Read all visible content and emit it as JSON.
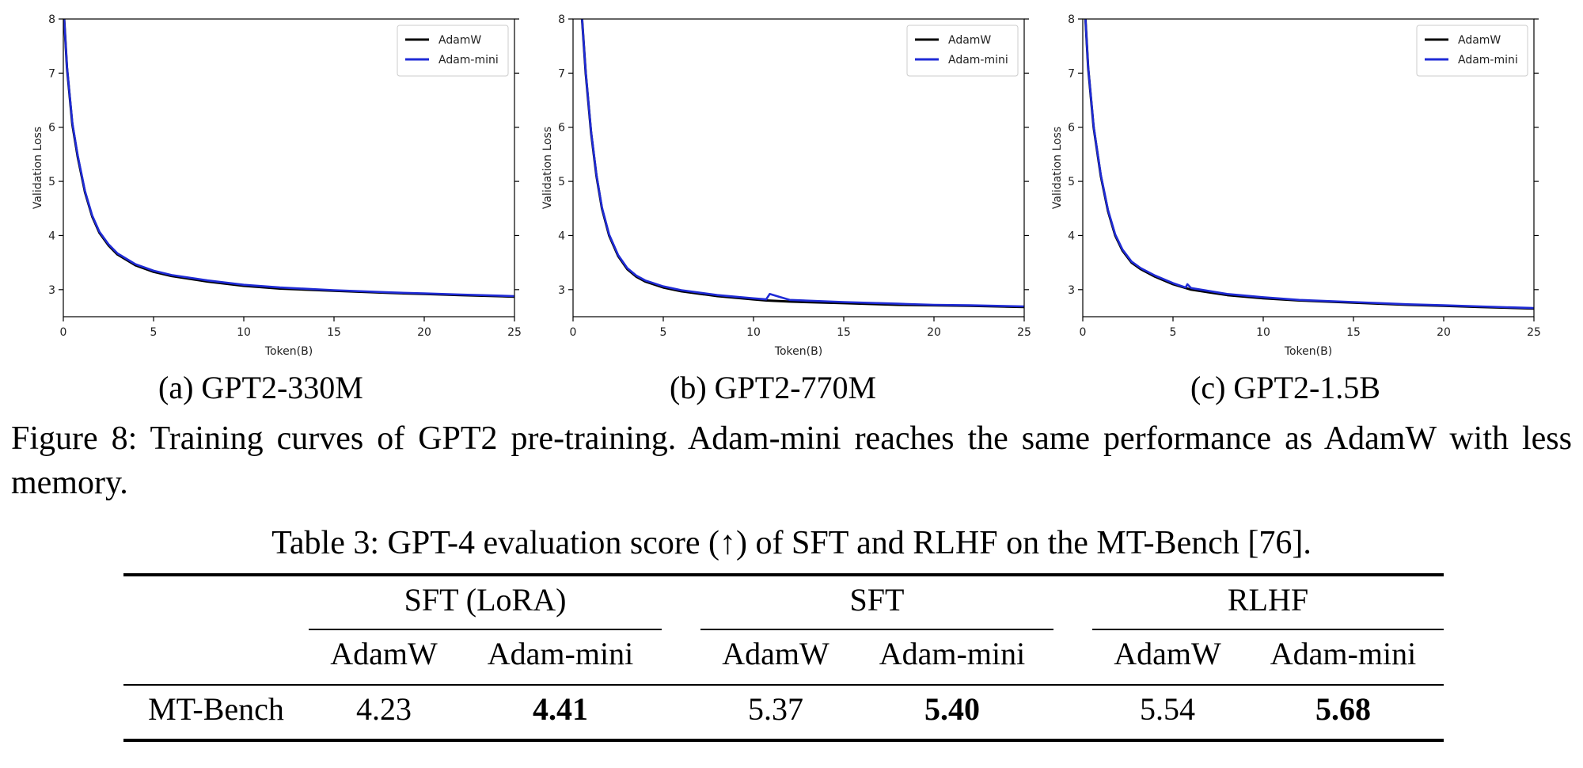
{
  "charts": {
    "chart_data": [
      {
        "type": "line",
        "id": "a",
        "xlabel": "Token(B)",
        "ylabel": "Validation Loss",
        "xlim": [
          0,
          25
        ],
        "ylim": [
          2.5,
          8
        ],
        "xticks": [
          "0",
          "5",
          "10",
          "15",
          "20",
          "25"
        ],
        "yticks": [
          "3",
          "4",
          "5",
          "6",
          "7",
          "8"
        ],
        "legend": [
          "AdamW",
          "Adam-mini"
        ],
        "legend_position": "top-right",
        "series": [
          {
            "name": "AdamW",
            "color": "#000000",
            "x": [
              0.05,
              0.2,
              0.5,
              0.8,
              1.2,
              1.6,
              2,
              2.5,
              3,
              4,
              5,
              6,
              8,
              10,
              12,
              15,
              18,
              20,
              22,
              25
            ],
            "y": [
              8,
              7.1,
              6.05,
              5.45,
              4.8,
              4.35,
              4.05,
              3.82,
              3.65,
              3.45,
              3.33,
              3.25,
              3.15,
              3.07,
              3.02,
              2.98,
              2.94,
              2.92,
              2.9,
              2.87
            ]
          },
          {
            "name": "Adam-mini",
            "color": "#1f2bd6",
            "x": [
              0.05,
              0.2,
              0.5,
              0.8,
              1.2,
              1.6,
              2,
              2.5,
              3,
              4,
              5,
              6,
              8,
              10,
              12,
              15,
              18,
              20,
              22,
              25
            ],
            "y": [
              8,
              7.12,
              6.08,
              5.48,
              4.82,
              4.37,
              4.07,
              3.84,
              3.67,
              3.47,
              3.35,
              3.27,
              3.17,
              3.09,
              3.04,
              2.99,
              2.95,
              2.93,
              2.91,
              2.88
            ]
          }
        ]
      },
      {
        "type": "line",
        "id": "b",
        "xlabel": "Token(B)",
        "ylabel": "Validation Loss",
        "xlim": [
          0,
          25
        ],
        "ylim": [
          2.5,
          8
        ],
        "xticks": [
          "0",
          "5",
          "10",
          "15",
          "20",
          "25"
        ],
        "yticks": [
          "3",
          "4",
          "5",
          "6",
          "7",
          "8"
        ],
        "legend": [
          "AdamW",
          "Adam-mini"
        ],
        "legend_position": "top-right",
        "series": [
          {
            "name": "AdamW",
            "color": "#000000",
            "x": [
              0.5,
              0.7,
              1,
              1.3,
              1.6,
              2,
              2.5,
              3,
              3.5,
              4,
              5,
              6,
              8,
              10,
              10.7,
              12,
              15,
              18,
              20,
              22,
              25
            ],
            "y": [
              8,
              7.0,
              5.9,
              5.1,
              4.5,
              4.0,
              3.62,
              3.38,
              3.24,
              3.15,
              3.04,
              2.97,
              2.88,
              2.82,
              2.8,
              2.78,
              2.75,
              2.72,
              2.71,
              2.7,
              2.68
            ]
          },
          {
            "name": "Adam-mini",
            "color": "#1f2bd6",
            "x": [
              0.5,
              0.7,
              1,
              1.3,
              1.6,
              2,
              2.5,
              3,
              3.5,
              4,
              5,
              6,
              8,
              10,
              10.7,
              10.9,
              11.5,
              12,
              15,
              18,
              20,
              22,
              25
            ],
            "y": [
              8,
              7.02,
              5.92,
              5.12,
              4.52,
              4.02,
              3.64,
              3.4,
              3.26,
              3.17,
              3.06,
              2.99,
              2.9,
              2.84,
              2.82,
              2.92,
              2.86,
              2.81,
              2.77,
              2.74,
              2.72,
              2.71,
              2.69
            ]
          }
        ]
      },
      {
        "type": "line",
        "id": "c",
        "xlabel": "Token(B)",
        "ylabel": "Validation Loss",
        "xlim": [
          0,
          25
        ],
        "ylim": [
          2.5,
          8
        ],
        "xticks": [
          "0",
          "5",
          "10",
          "15",
          "20",
          "25"
        ],
        "yticks": [
          "3",
          "4",
          "5",
          "6",
          "7",
          "8"
        ],
        "legend": [
          "AdamW",
          "Adam-mini"
        ],
        "legend_position": "top-right",
        "series": [
          {
            "name": "AdamW",
            "color": "#000000",
            "x": [
              0.15,
              0.3,
              0.6,
              1,
              1.4,
              1.8,
              2.2,
              2.7,
              3.2,
              4,
              5,
              6,
              8,
              10,
              12,
              15,
              18,
              20,
              22,
              25
            ],
            "y": [
              8,
              7.1,
              6.0,
              5.1,
              4.45,
              4.0,
              3.72,
              3.5,
              3.38,
              3.24,
              3.1,
              3.0,
              2.9,
              2.84,
              2.8,
              2.76,
              2.72,
              2.7,
              2.68,
              2.65
            ]
          },
          {
            "name": "Adam-mini",
            "color": "#1f2bd6",
            "x": [
              0.15,
              0.3,
              0.6,
              1,
              1.4,
              1.8,
              2.2,
              2.7,
              3.2,
              4,
              5,
              5.7,
              5.8,
              6,
              8,
              10,
              12,
              15,
              18,
              20,
              22,
              25
            ],
            "y": [
              8,
              7.12,
              6.02,
              5.12,
              4.47,
              4.02,
              3.74,
              3.52,
              3.4,
              3.26,
              3.12,
              3.04,
              3.1,
              3.03,
              2.92,
              2.86,
              2.81,
              2.77,
              2.73,
              2.71,
              2.69,
              2.66
            ]
          }
        ]
      }
    ]
  },
  "subcaptions": {
    "a": "(a) GPT2-330M",
    "b": "(b) GPT2-770M",
    "c": "(c) GPT2-1.5B"
  },
  "figure_caption": "Figure 8: Training curves of GPT2 pre-training.  Adam-mini reaches the same performance as AdamW with less memory.",
  "table": {
    "caption": "Table 3: GPT-4 evaluation score (↑) of SFT and RLHF on the MT-Bench [76].",
    "groups": [
      "SFT (LoRA)",
      "SFT",
      "RLHF"
    ],
    "subheaders": [
      "AdamW",
      "Adam-mini",
      "AdamW",
      "Adam-mini",
      "AdamW",
      "Adam-mini"
    ],
    "row_label": "MT-Bench",
    "values": [
      "4.23",
      "4.41",
      "5.37",
      "5.40",
      "5.54",
      "5.68"
    ]
  }
}
